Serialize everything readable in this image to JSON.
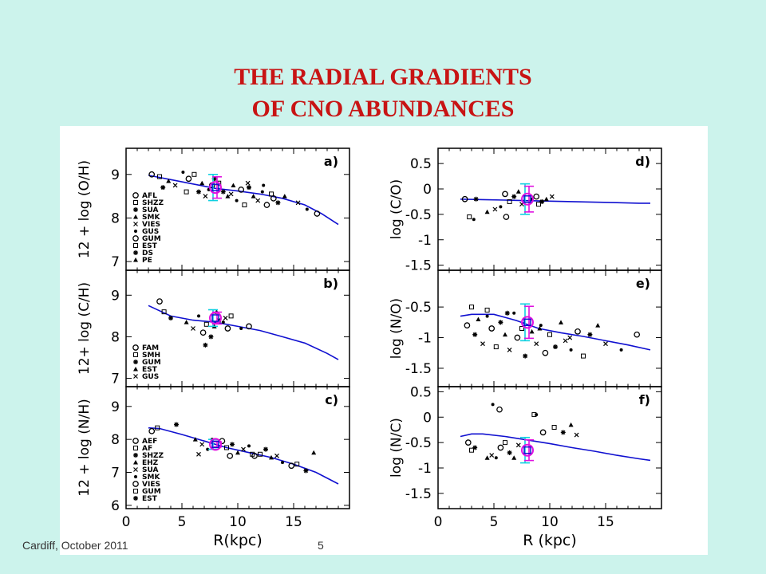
{
  "slide": {
    "title_line1": "THE RADIAL GRADIENTS",
    "title_line2": "OF CNO ABUNDANCES",
    "footer_left": "Cardiff, October 2011",
    "footer_page": "5"
  },
  "colors": {
    "title": "#c81414",
    "background": "#ccf3ec",
    "model_line": "#1010d0",
    "err_magenta": "#e010e0",
    "err_cyan": "#10d0e0"
  },
  "chart_data": [
    {
      "type": "scatter",
      "panel": "a)",
      "ylabel": "12 + log (O/H)",
      "xlim": [
        0,
        20
      ],
      "ylim": [
        6.8,
        9.6
      ],
      "yticks": [
        "7",
        "8",
        "9"
      ],
      "legend": [
        "AFL",
        "SHZZ",
        "SUA",
        "SMK",
        "VIES",
        "GUS",
        "GUM",
        "EST",
        "DS",
        "PE"
      ],
      "model_line": {
        "x": [
          2,
          4,
          6,
          8,
          10,
          12,
          14,
          16,
          17.5,
          19
        ],
        "y": [
          8.98,
          8.88,
          8.78,
          8.68,
          8.62,
          8.55,
          8.45,
          8.3,
          8.1,
          7.85
        ]
      },
      "points": {
        "x": [
          2.3,
          3.0,
          3.3,
          3.8,
          4.4,
          5.1,
          5.6,
          6.1,
          6.5,
          6.8,
          7.1,
          7.4,
          7.7,
          8.3,
          8.7,
          9.1,
          9.4,
          9.9,
          10.3,
          10.6,
          11.0,
          11.4,
          11.8,
          12.2,
          12.6,
          13.0,
          13.6,
          14.2,
          15.4,
          16.2,
          17.1,
          5.4,
          7.9,
          9.6,
          10.9,
          12.3,
          13.2
        ],
        "y": [
          9.0,
          8.95,
          8.7,
          8.85,
          8.75,
          9.05,
          8.9,
          9.0,
          8.6,
          8.8,
          8.5,
          8.65,
          8.75,
          8.8,
          8.6,
          8.5,
          8.55,
          8.4,
          8.65,
          8.3,
          8.7,
          8.5,
          8.4,
          8.6,
          8.3,
          8.55,
          8.35,
          8.5,
          8.35,
          8.2,
          8.1,
          8.6,
          8.9,
          8.75,
          8.8,
          8.75,
          8.45
        ]
      },
      "solar": {
        "x": 8,
        "y": 8.7,
        "err": 0.3
      }
    },
    {
      "type": "scatter",
      "panel": "b)",
      "ylabel": "12+ log (C/H)",
      "xlim": [
        0,
        20
      ],
      "ylim": [
        6.8,
        9.6
      ],
      "yticks": [
        "7",
        "8",
        "9"
      ],
      "legend": [
        "FAM",
        "SMH",
        "GUM",
        "EST",
        "GUS"
      ],
      "model_line": {
        "x": [
          2,
          4,
          6,
          8,
          10,
          12,
          14,
          16,
          18,
          19
        ],
        "y": [
          8.75,
          8.5,
          8.4,
          8.35,
          8.25,
          8.15,
          8.0,
          7.85,
          7.6,
          7.45
        ]
      },
      "points": {
        "x": [
          3.0,
          3.4,
          4.0,
          5.4,
          6.0,
          6.5,
          6.9,
          7.2,
          7.6,
          7.9,
          8.3,
          8.7,
          9.1,
          9.4,
          7.1,
          8.1,
          8.9,
          10.3,
          11.0
        ],
        "y": [
          8.85,
          8.6,
          8.45,
          8.35,
          8.2,
          8.5,
          8.1,
          8.3,
          8.0,
          8.25,
          8.4,
          8.35,
          8.2,
          8.5,
          7.8,
          8.6,
          8.45,
          8.2,
          8.25
        ]
      },
      "solar": {
        "x": 8,
        "y": 8.45,
        "err": 0.2
      }
    },
    {
      "type": "scatter",
      "panel": "c)",
      "ylabel": "12 + log (N/H)",
      "xlabel": "R(kpc)",
      "xlim": [
        0,
        20
      ],
      "ylim": [
        5.9,
        9.6
      ],
      "xticks": [
        "0",
        "5",
        "10",
        "15"
      ],
      "yticks": [
        "6",
        "7",
        "8",
        "9"
      ],
      "legend": [
        "AEF",
        "AF",
        "SHZZ",
        "EHZ",
        "SUA",
        "SMK",
        "VIES",
        "GUM",
        "EST"
      ],
      "model_line": {
        "x": [
          2,
          3,
          5,
          7,
          9,
          11,
          13,
          15,
          17,
          19
        ],
        "y": [
          8.35,
          8.33,
          8.15,
          7.95,
          7.75,
          7.6,
          7.45,
          7.25,
          7.0,
          6.65
        ]
      },
      "points": {
        "x": [
          2.3,
          2.8,
          4.5,
          6.2,
          6.8,
          7.3,
          8.6,
          9.0,
          9.5,
          10.0,
          10.5,
          11.0,
          11.5,
          12.0,
          12.5,
          13.0,
          13.5,
          14.0,
          14.8,
          15.3,
          16.1,
          16.8,
          6.5,
          7.7,
          9.3,
          11.3
        ],
        "y": [
          8.25,
          8.35,
          8.45,
          8.0,
          7.85,
          7.7,
          7.95,
          7.75,
          7.85,
          7.6,
          7.7,
          7.8,
          7.5,
          7.55,
          7.7,
          7.45,
          7.5,
          7.3,
          7.2,
          7.25,
          7.05,
          7.6,
          7.55,
          8.0,
          7.5,
          7.55
        ]
      },
      "solar": {
        "x": 8,
        "y": 7.85,
        "err": 0.15
      }
    },
    {
      "type": "scatter",
      "panel": "d)",
      "ylabel": "log (C/O)",
      "xlim": [
        0,
        20
      ],
      "ylim": [
        -1.6,
        0.8
      ],
      "yticks": [
        "0.5",
        "0",
        "-0.5",
        "-1",
        "-1.5"
      ],
      "model_line": {
        "x": [
          2,
          4,
          6,
          8,
          10,
          12,
          14,
          16,
          18,
          19
        ],
        "y": [
          -0.2,
          -0.21,
          -0.22,
          -0.23,
          -0.24,
          -0.25,
          -0.26,
          -0.27,
          -0.28,
          -0.28
        ]
      },
      "points": {
        "x": [
          2.4,
          2.8,
          3.4,
          4.4,
          5.1,
          5.6,
          6.0,
          6.4,
          6.8,
          7.2,
          7.5,
          8.4,
          8.8,
          9.0,
          9.3,
          9.7,
          10.2,
          3.2,
          6.1
        ],
        "y": [
          -0.2,
          -0.55,
          -0.2,
          -0.45,
          -0.4,
          -0.35,
          -0.1,
          -0.25,
          -0.15,
          -0.05,
          -0.3,
          -0.2,
          -0.15,
          -0.3,
          -0.25,
          -0.2,
          -0.15,
          -0.6,
          -0.55
        ]
      },
      "solar": {
        "x": 8,
        "y": -0.2,
        "err": 0.3
      }
    },
    {
      "type": "scatter",
      "panel": "e)",
      "ylabel": "log (N/O)",
      "xlim": [
        0,
        20
      ],
      "ylim": [
        -1.8,
        0.1
      ],
      "yticks": [
        "-0.5",
        "-1",
        "-1.5"
      ],
      "model_line": {
        "x": [
          2,
          3,
          5,
          7,
          9,
          11,
          13,
          15,
          17,
          19
        ],
        "y": [
          -0.65,
          -0.62,
          -0.62,
          -0.72,
          -0.85,
          -0.92,
          -0.98,
          -1.05,
          -1.12,
          -1.2
        ]
      },
      "points": {
        "x": [
          2.6,
          3.0,
          3.3,
          3.6,
          4.0,
          4.4,
          4.8,
          5.2,
          5.6,
          6.0,
          6.4,
          6.8,
          7.1,
          7.5,
          7.8,
          8.4,
          8.8,
          9.2,
          9.6,
          10.0,
          10.5,
          11.0,
          11.4,
          11.9,
          12.5,
          13.0,
          13.6,
          14.3,
          15.0,
          16.4,
          17.8,
          4.4,
          6.2,
          9.1,
          11.8
        ],
        "y": [
          -0.8,
          -0.5,
          -0.95,
          -0.7,
          -1.1,
          -0.65,
          -0.85,
          -1.15,
          -0.75,
          -0.95,
          -1.2,
          -0.6,
          -1.0,
          -0.85,
          -1.3,
          -0.9,
          -1.1,
          -0.8,
          -1.25,
          -0.95,
          -1.15,
          -0.75,
          -1.05,
          -1.2,
          -0.9,
          -1.3,
          -0.95,
          -0.8,
          -1.1,
          -1.2,
          -0.95,
          -0.55,
          -0.6,
          -0.85,
          -1.0
        ]
      },
      "solar": {
        "x": 8,
        "y": -0.75,
        "err": 0.3
      }
    },
    {
      "type": "scatter",
      "panel": "f)",
      "ylabel": "log (N/C)",
      "xlabel": "R (kpc)",
      "xlim": [
        0,
        20
      ],
      "ylim": [
        -1.8,
        0.6
      ],
      "xticks": [
        "0",
        "5",
        "10",
        "15"
      ],
      "yticks": [
        "0.5",
        "0",
        "-0.5",
        "-1",
        "-1.5"
      ],
      "model_line": {
        "x": [
          2,
          3,
          4,
          6,
          8,
          10,
          12,
          14,
          16,
          18,
          19
        ],
        "y": [
          -0.38,
          -0.33,
          -0.33,
          -0.38,
          -0.45,
          -0.52,
          -0.6,
          -0.67,
          -0.75,
          -0.82,
          -0.85
        ]
      },
      "points": {
        "x": [
          2.7,
          3.0,
          3.3,
          4.4,
          4.8,
          5.2,
          5.6,
          6.0,
          6.4,
          6.8,
          7.2,
          8.8,
          9.4,
          10.4,
          11.2,
          11.9,
          12.4,
          4.9,
          5.5,
          8.6
        ],
        "y": [
          -0.5,
          -0.65,
          -0.6,
          -0.8,
          -0.75,
          -0.8,
          -0.6,
          -0.5,
          -0.7,
          -0.8,
          -0.55,
          0.05,
          -0.3,
          -0.2,
          -0.3,
          -0.15,
          -0.35,
          0.25,
          0.15,
          0.05
        ]
      },
      "solar": {
        "x": 8,
        "y": -0.65,
        "err": 0.25
      }
    }
  ]
}
